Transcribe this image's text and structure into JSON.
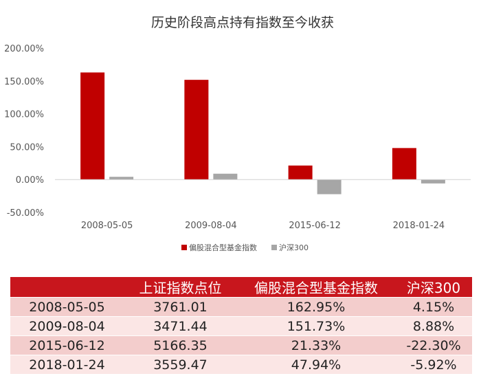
{
  "chart_data": {
    "type": "bar",
    "title": "历史阶段高点持有指数至今收获",
    "categories": [
      "2008-05-05",
      "2009-08-04",
      "2015-06-12",
      "2018-01-24"
    ],
    "series": [
      {
        "name": "偏股混合型基金指数",
        "values": [
          162.95,
          151.73,
          21.33,
          47.94
        ],
        "color": "#c00000"
      },
      {
        "name": "沪深300",
        "values": [
          4.15,
          8.88,
          -22.3,
          -5.92
        ],
        "color": "#a6a6a6"
      }
    ],
    "ylim": [
      -50,
      200
    ],
    "y_ticks": [
      "200.00%",
      "150.00%",
      "100.00%",
      "50.00%",
      "0.00%",
      "-50.00%"
    ],
    "y_tick_values": [
      200,
      150,
      100,
      50,
      0,
      -50
    ],
    "grid": false,
    "legend_position": "bottom"
  },
  "table": {
    "headers": [
      "",
      "上证指数点位",
      "偏股混合型基金指数",
      "沪深300"
    ],
    "rows": [
      [
        "2008-05-05",
        "3761.01",
        "162.95%",
        "4.15%"
      ],
      [
        "2009-08-04",
        "3471.44",
        "151.73%",
        "8.88%"
      ],
      [
        "2015-06-12",
        "5166.35",
        "21.33%",
        "-22.30%"
      ],
      [
        "2018-01-24",
        "3559.47",
        "47.94%",
        "-5.92%"
      ]
    ],
    "header_color": "#c8161d"
  }
}
